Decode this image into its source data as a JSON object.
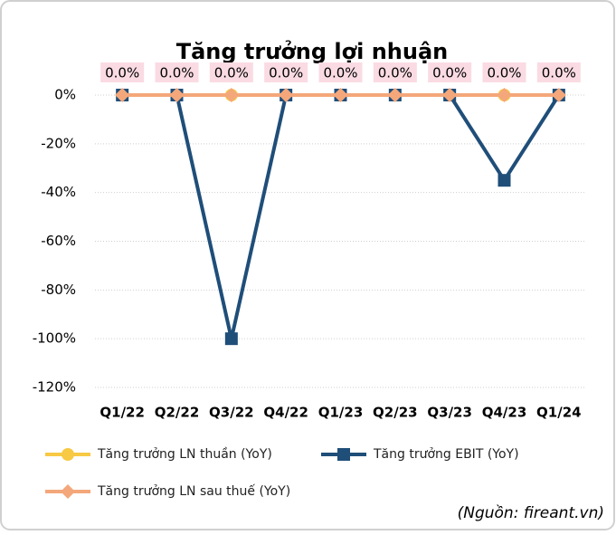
{
  "chart_data": {
    "type": "line",
    "title": "Tăng trưởng lợi nhuận",
    "categories": [
      "Q1/22",
      "Q2/22",
      "Q3/22",
      "Q4/22",
      "Q1/23",
      "Q2/23",
      "Q3/23",
      "Q4/23",
      "Q1/24"
    ],
    "series": [
      {
        "name": "Tăng trưởng LN thuần (YoY)",
        "color": "#f7c944",
        "marker": "circle",
        "values": [
          0,
          0,
          0,
          0,
          0,
          0,
          0,
          0,
          0
        ]
      },
      {
        "name": "Tăng trưởng EBIT (YoY)",
        "color": "#1f4e79",
        "marker": "square",
        "values": [
          0,
          0,
          -100,
          0,
          0,
          0,
          0,
          -35,
          0
        ]
      },
      {
        "name": "Tăng trưởng LN sau thuế (YoY)",
        "color": "#f4a77a",
        "marker": "diamond",
        "values": [
          0,
          0,
          0,
          0,
          0,
          0,
          0,
          0,
          0
        ],
        "value_labels": [
          "0.0%",
          "0.0%",
          "0.0%",
          "0.0%",
          "0.0%",
          "0.0%",
          "0.0%",
          "0.0%",
          "0.0%"
        ]
      }
    ],
    "ylim": [
      -120,
      0
    ],
    "yticks": [
      {
        "value": 0,
        "label": "0%"
      },
      {
        "value": -20,
        "label": "-20%"
      },
      {
        "value": -40,
        "label": "-40%"
      },
      {
        "value": -60,
        "label": "-60%"
      },
      {
        "value": -80,
        "label": "-80%"
      },
      {
        "value": -100,
        "label": "-100%"
      },
      {
        "value": -120,
        "label": "-120%"
      }
    ],
    "grid": true,
    "source": "(Nguồn: fireant.vn)"
  }
}
